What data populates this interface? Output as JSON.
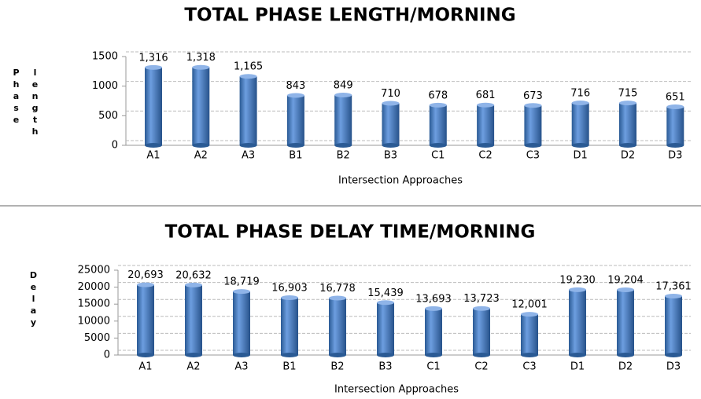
{
  "chart_data": [
    {
      "type": "bar",
      "title": "TOTAL PHASE LENGTH/MORNING",
      "xlabel": "Intersection Approaches",
      "ylabel": "Phase length",
      "categories": [
        "A1",
        "A2",
        "A3",
        "B1",
        "B2",
        "B3",
        "C1",
        "C2",
        "C3",
        "D1",
        "D2",
        "D3"
      ],
      "values": [
        1316,
        1318,
        1165,
        843,
        849,
        710,
        678,
        681,
        673,
        716,
        715,
        651
      ],
      "value_labels": [
        "1,316",
        "1,318",
        "1,165",
        "843",
        "849",
        "710",
        "678",
        "681",
        "673",
        "716",
        "715",
        "651"
      ],
      "color": "#4f81bd",
      "ylim": [
        0,
        1500
      ],
      "yticks": [
        0,
        500,
        1000,
        1500
      ],
      "grid": true
    },
    {
      "type": "bar",
      "title": "TOTAL PHASE DELAY TIME/MORNING",
      "xlabel": "Intersection Approaches",
      "ylabel": "Delay",
      "categories": [
        "A1",
        "A2",
        "A3",
        "B1",
        "B2",
        "B3",
        "C1",
        "C2",
        "C3",
        "D1",
        "D2",
        "D3"
      ],
      "values": [
        20693,
        20632,
        18719,
        16903,
        16778,
        15439,
        13693,
        13723,
        12001,
        19230,
        19204,
        17361
      ],
      "value_labels": [
        "20,693",
        "20,632",
        "18,719",
        "16,903",
        "16,778",
        "15,439",
        "13,693",
        "13,723",
        "12,001",
        "19,230",
        "19,204",
        "17,361"
      ],
      "color": "#4f81bd",
      "ylim": [
        0,
        25000
      ],
      "yticks": [
        0,
        5000,
        10000,
        15000,
        20000,
        25000
      ],
      "grid": true
    }
  ]
}
